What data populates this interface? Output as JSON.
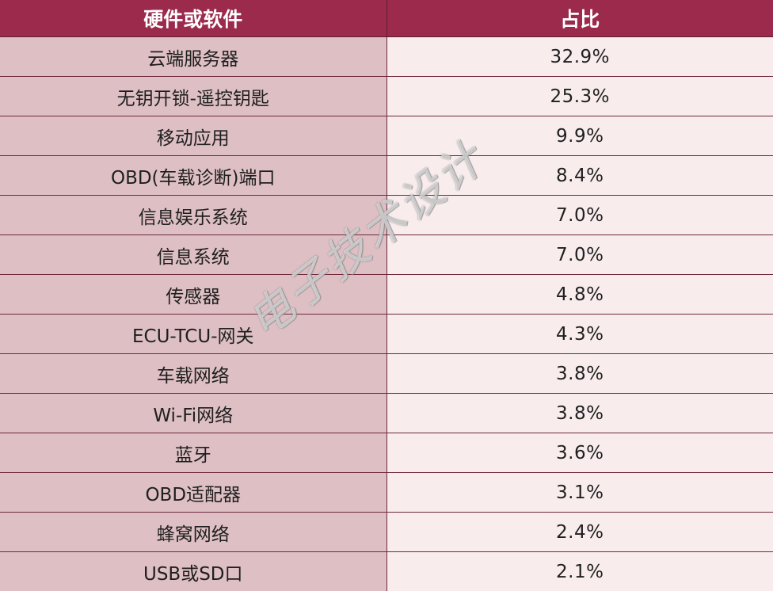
{
  "table": {
    "headers": [
      "硬件或软件",
      "占比"
    ],
    "rows": [
      {
        "name": "云端服务器",
        "pct": "32.9%"
      },
      {
        "name": "无钥开锁-遥控钥匙",
        "pct": "25.3%"
      },
      {
        "name": "移动应用",
        "pct": "9.9%"
      },
      {
        "name": "OBD(车载诊断)端口",
        "pct": "8.4%"
      },
      {
        "name": "信息娱乐系统",
        "pct": "7.0%"
      },
      {
        "name": "信息系统",
        "pct": "7.0%"
      },
      {
        "name": "传感器",
        "pct": "4.8%"
      },
      {
        "name": "ECU-TCU-网关",
        "pct": "4.3%"
      },
      {
        "name": "车载网络",
        "pct": "3.8%"
      },
      {
        "name": "Wi-Fi网络",
        "pct": "3.8%"
      },
      {
        "name": "蓝牙",
        "pct": "3.6%"
      },
      {
        "name": "OBD适配器",
        "pct": "3.1%"
      },
      {
        "name": "蜂窝网络",
        "pct": "2.4%"
      },
      {
        "name": "USB或SD口",
        "pct": "2.1%"
      }
    ]
  },
  "watermark": "电子技术设计",
  "colors": {
    "header_bg": "#9b2a4c",
    "name_col_bg": "#ddbfc4",
    "pct_col_bg": "#f8eced"
  }
}
